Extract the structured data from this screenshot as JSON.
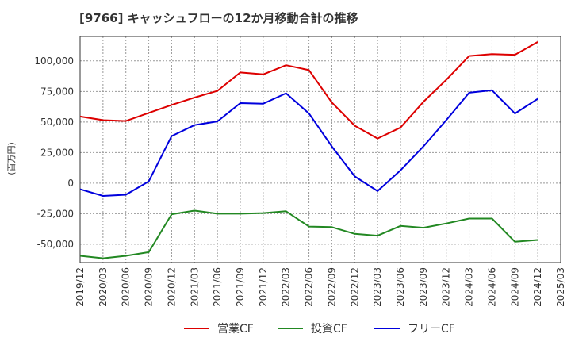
{
  "chart_data": {
    "type": "line",
    "title": "[9766]  キャッシュフローの12か月移動合計の推移",
    "xlabel": "",
    "ylabel": "(百万円)",
    "ylim": [
      -65000,
      120000
    ],
    "yticks": [
      -50000,
      -25000,
      0,
      25000,
      50000,
      75000,
      100000
    ],
    "ytick_labels": [
      "-50,000",
      "-25,000",
      "0",
      "25,000",
      "50,000",
      "75,000",
      "100,000"
    ],
    "x": [
      "2019/12",
      "2020/03",
      "2020/06",
      "2020/09",
      "2020/12",
      "2021/03",
      "2021/06",
      "2021/09",
      "2021/12",
      "2022/03",
      "2022/06",
      "2022/09",
      "2022/12",
      "2023/03",
      "2023/06",
      "2023/09",
      "2023/12",
      "2024/03",
      "2024/06",
      "2024/09",
      "2024/12",
      "2025/03"
    ],
    "grid": true,
    "legend_position": "bottom",
    "series": [
      {
        "name": "営業CF",
        "color": "#dd0000",
        "values": [
          54500,
          51500,
          50800,
          57500,
          64000,
          70000,
          75500,
          90500,
          89000,
          96500,
          92500,
          66000,
          47000,
          36500,
          45500,
          66500,
          84500,
          104000,
          105500,
          105000,
          115500,
          null
        ]
      },
      {
        "name": "投資CF",
        "color": "#228822",
        "values": [
          -59500,
          -61500,
          -59500,
          -56500,
          -25500,
          -22500,
          -25000,
          -25000,
          -24500,
          -23000,
          -35500,
          -36000,
          -41500,
          -43000,
          -35000,
          -36500,
          -33000,
          -29000,
          -29000,
          -48000,
          -46500,
          null
        ]
      },
      {
        "name": "フリーCF",
        "color": "#0000dd",
        "values": [
          -5000,
          -10500,
          -9500,
          1500,
          38500,
          47500,
          50500,
          65500,
          65000,
          73500,
          57000,
          30000,
          5500,
          -6500,
          10500,
          30000,
          51500,
          74000,
          76000,
          57000,
          69000,
          null
        ]
      }
    ]
  }
}
